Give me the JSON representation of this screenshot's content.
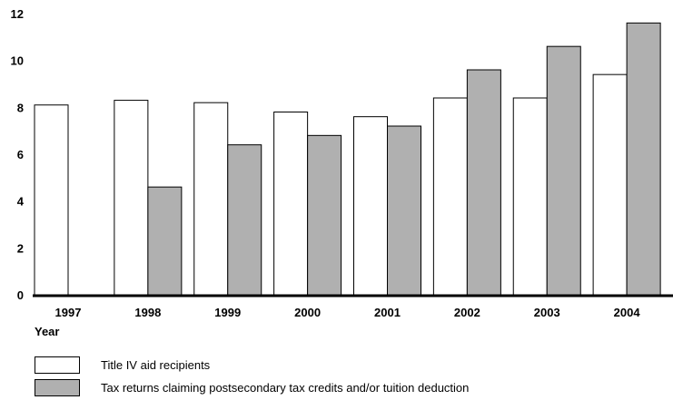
{
  "chart_data": {
    "type": "bar",
    "title": "",
    "xlabel": "Year",
    "ylabel": "",
    "ylim": [
      0,
      12
    ],
    "yticks": [
      0,
      2,
      4,
      6,
      8,
      10,
      12
    ],
    "grid": false,
    "legend_position": "bottom",
    "categories": [
      "1997",
      "1998",
      "1999",
      "2000",
      "2001",
      "2002",
      "2003",
      "2004"
    ],
    "series": [
      {
        "name": "Title IV aid recipients",
        "color": "#ffffff",
        "values": [
          8.1,
          8.3,
          8.2,
          7.8,
          7.6,
          8.4,
          8.4,
          9.4
        ]
      },
      {
        "name": "Tax returns claiming postsecondary tax credits and/or tuition deduction",
        "color": "#b0b0b0",
        "values": [
          null,
          4.6,
          6.4,
          6.8,
          7.2,
          9.6,
          10.6,
          11.6
        ]
      }
    ]
  },
  "colors": {
    "axis": "#000000",
    "bar_stroke": "#000000"
  }
}
